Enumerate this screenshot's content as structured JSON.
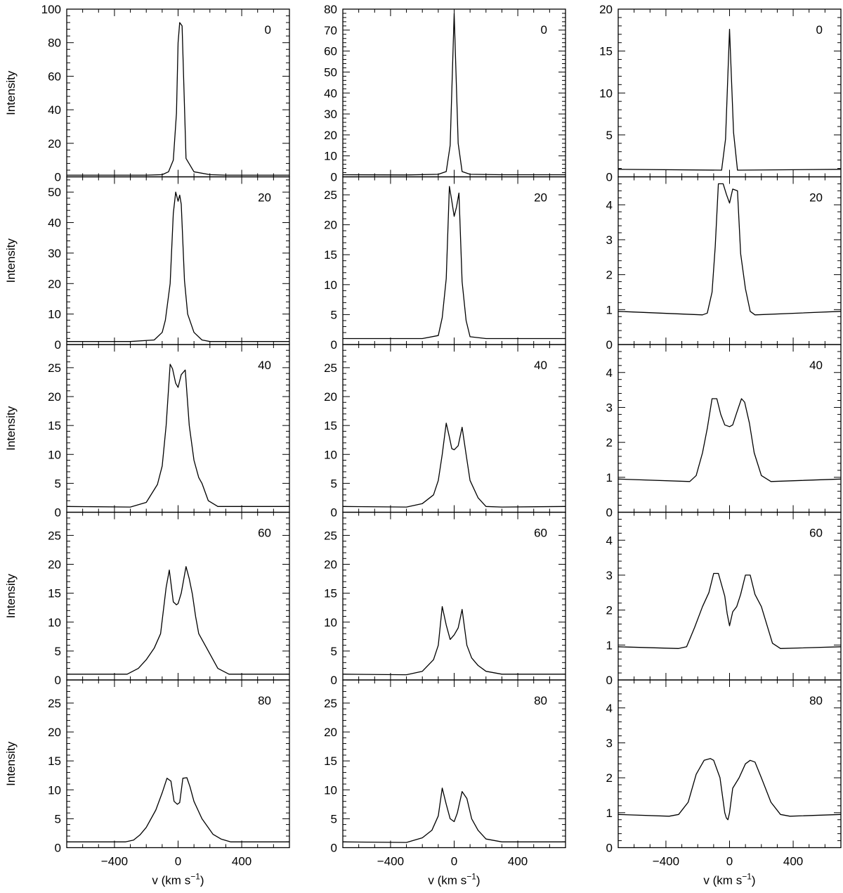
{
  "figure": {
    "ylabel": "Intensity",
    "xlabel_main": "v (km s",
    "xlabel_sup": "−1",
    "xlabel_close": ")",
    "x_ticklabels": [
      "−400",
      "0",
      "400"
    ]
  },
  "chart_data": {
    "type": "line",
    "xlabel": "v (km s−1)",
    "ylabel": "Intensity",
    "xlim": [
      -700,
      700
    ],
    "x_ticks": [
      -400,
      0,
      400
    ],
    "grid": false,
    "columns": [
      {
        "panels": [
          {
            "label": "0",
            "ylim": [
              0,
              100
            ],
            "yticks": [
              0,
              20,
              40,
              60,
              80,
              100
            ],
            "x": [
              -700,
              -300,
              -200,
              -100,
              -60,
              -30,
              -10,
              0,
              10,
              25,
              50,
              100,
              200,
              300,
              700
            ],
            "y": [
              1,
              1,
              1,
              1.3,
              3,
              10,
              38,
              80,
              92,
              90,
              11,
              3,
              1.3,
              1,
              1
            ]
          },
          {
            "label": "20",
            "ylim": [
              0,
              55
            ],
            "yticks": [
              0,
              10,
              20,
              30,
              40,
              50
            ],
            "x": [
              -700,
              -300,
              -150,
              -100,
              -80,
              -50,
              -30,
              -15,
              0,
              10,
              20,
              40,
              60,
              100,
              150,
              200,
              700
            ],
            "y": [
              1,
              1,
              1.5,
              4,
              8,
              20,
              43,
              50,
              47,
              49,
              46,
              21,
              10,
              4,
              1.5,
              1,
              1
            ]
          },
          {
            "label": "40",
            "ylim": [
              0,
              29
            ],
            "yticks": [
              0,
              5,
              10,
              15,
              20,
              25
            ],
            "x": [
              -700,
              -300,
              -200,
              -130,
              -100,
              -75,
              -50,
              -35,
              -15,
              0,
              20,
              45,
              70,
              100,
              130,
              150,
              190,
              250,
              700
            ],
            "y": [
              1,
              0.9,
              1.7,
              4.8,
              8,
              15,
              25.6,
              24.8,
              22.3,
              21.6,
              23.8,
              24.6,
              15,
              9,
              6,
              5,
              2,
              1,
              1
            ]
          },
          {
            "label": "60",
            "ylim": [
              0,
              29
            ],
            "yticks": [
              0,
              5,
              10,
              15,
              20,
              25
            ],
            "x": [
              -700,
              -320,
              -250,
              -200,
              -150,
              -110,
              -75,
              -55,
              -30,
              -10,
              0,
              20,
              50,
              70,
              90,
              110,
              130,
              180,
              250,
              320,
              700
            ],
            "y": [
              1,
              1,
              2,
              3.5,
              5.5,
              8,
              16,
              19,
              13.5,
              13,
              13.2,
              15,
              19.6,
              17.5,
              14.8,
              11,
              8,
              5.5,
              2,
              1,
              1
            ]
          },
          {
            "label": "80",
            "ylim": [
              0,
              29
            ],
            "yticks": [
              0,
              5,
              10,
              15,
              20,
              25
            ],
            "x": [
              -700,
              -330,
              -280,
              -240,
              -200,
              -140,
              -100,
              -70,
              -45,
              -25,
              -5,
              10,
              30,
              55,
              75,
              100,
              150,
              220,
              270,
              330,
              700
            ],
            "y": [
              1,
              1,
              1.3,
              2.2,
              3.5,
              6.5,
              9.5,
              12,
              11.5,
              8,
              7.5,
              7.8,
              12,
              12.1,
              10.5,
              8,
              5,
              2.3,
              1.5,
              1,
              1
            ]
          }
        ]
      },
      {
        "panels": [
          {
            "label": "0",
            "ylim": [
              0,
              80
            ],
            "yticks": [
              0,
              10,
              20,
              30,
              40,
              50,
              60,
              70,
              80
            ],
            "x": [
              -700,
              -300,
              -100,
              -50,
              -25,
              0,
              25,
              50,
              100,
              300,
              700
            ],
            "y": [
              1,
              0.9,
              1.2,
              2.5,
              15,
              78,
              16,
              2.5,
              1.2,
              1,
              1
            ]
          },
          {
            "label": "20",
            "ylim": [
              0,
              28
            ],
            "yticks": [
              0,
              5,
              10,
              15,
              20,
              25
            ],
            "x": [
              -700,
              -200,
              -100,
              -75,
              -50,
              -30,
              -15,
              0,
              15,
              30,
              50,
              75,
              100,
              200,
              700
            ],
            "y": [
              1,
              1,
              1.5,
              4.5,
              11,
              26.4,
              24,
              21.4,
              23,
              25.3,
              10.5,
              4,
              1.3,
              1,
              1
            ]
          },
          {
            "label": "40",
            "ylim": [
              0,
              29
            ],
            "yticks": [
              0,
              5,
              10,
              15,
              20,
              25
            ],
            "x": [
              -700,
              -300,
              -200,
              -130,
              -100,
              -75,
              -50,
              -30,
              -15,
              0,
              25,
              50,
              75,
              100,
              150,
              200,
              300,
              700
            ],
            "y": [
              1,
              0.9,
              1.5,
              3,
              5.5,
              10,
              15.4,
              13,
              11,
              10.8,
              11.5,
              14.7,
              10,
              5.5,
              2.5,
              1,
              0.9,
              1
            ]
          },
          {
            "label": "60",
            "ylim": [
              0,
              29
            ],
            "yticks": [
              0,
              5,
              10,
              15,
              20,
              25
            ],
            "x": [
              -700,
              -300,
              -200,
              -130,
              -100,
              -75,
              -50,
              -25,
              0,
              25,
              50,
              80,
              110,
              150,
              200,
              300,
              700
            ],
            "y": [
              1,
              0.9,
              1.5,
              3.5,
              6,
              12.7,
              9.5,
              7,
              7.8,
              9,
              12.2,
              6,
              3.8,
              2.5,
              1.5,
              1,
              1
            ]
          },
          {
            "label": "80",
            "ylim": [
              0,
              29
            ],
            "yticks": [
              0,
              5,
              10,
              15,
              20,
              25
            ],
            "x": [
              -700,
              -300,
              -200,
              -140,
              -100,
              -75,
              -50,
              -25,
              0,
              20,
              50,
              80,
              110,
              150,
              200,
              300,
              700
            ],
            "y": [
              1,
              0.9,
              1.7,
              3,
              5.5,
              10.3,
              7.5,
              5,
              4.5,
              6,
              9.7,
              8.5,
              5,
              3,
              1.5,
              1,
              1
            ]
          }
        ]
      },
      {
        "panels": [
          {
            "label": "0",
            "ylim": [
              0,
              20
            ],
            "yticks": [
              0,
              5,
              10,
              15,
              20
            ],
            "x": [
              -700,
              -50,
              -25,
              0,
              25,
              50,
              700
            ],
            "y": [
              0.9,
              0.8,
              4.5,
              17.6,
              5.3,
              0.8,
              0.9
            ]
          },
          {
            "label": "20",
            "ylim": [
              0,
              4.8
            ],
            "yticks": [
              0,
              1,
              2,
              3,
              4
            ],
            "x": [
              -700,
              -170,
              -140,
              -110,
              -90,
              -70,
              -40,
              -20,
              0,
              20,
              50,
              70,
              100,
              130,
              160,
              700
            ],
            "y": [
              0.95,
              0.85,
              0.9,
              1.5,
              2.8,
              4.6,
              4.6,
              4.3,
              4.05,
              4.45,
              4.4,
              2.6,
              1.6,
              0.95,
              0.85,
              0.95
            ]
          },
          {
            "label": "40",
            "ylim": [
              0,
              4.8
            ],
            "yticks": [
              0,
              1,
              2,
              3,
              4
            ],
            "x": [
              -700,
              -250,
              -210,
              -170,
              -140,
              -110,
              -80,
              -55,
              -30,
              0,
              20,
              45,
              75,
              95,
              125,
              155,
              200,
              260,
              700
            ],
            "y": [
              0.95,
              0.88,
              1.05,
              1.7,
              2.4,
              3.25,
              3.25,
              2.8,
              2.5,
              2.45,
              2.5,
              2.85,
              3.25,
              3.15,
              2.55,
              1.7,
              1.05,
              0.88,
              0.95
            ]
          },
          {
            "label": "60",
            "ylim": [
              0,
              4.8
            ],
            "yticks": [
              0,
              1,
              2,
              3,
              4
            ],
            "x": [
              -700,
              -320,
              -270,
              -220,
              -170,
              -130,
              -100,
              -70,
              -30,
              -15,
              0,
              20,
              45,
              70,
              100,
              130,
              160,
              200,
              270,
              320,
              700
            ],
            "y": [
              0.95,
              0.9,
              0.95,
              1.5,
              2.1,
              2.5,
              3.05,
              3.05,
              2.4,
              1.9,
              1.55,
              1.95,
              2.1,
              2.45,
              3.0,
              3.0,
              2.45,
              2.1,
              1.05,
              0.9,
              0.95
            ]
          },
          {
            "label": "80",
            "ylim": [
              0,
              4.8
            ],
            "yticks": [
              0,
              1,
              2,
              3,
              4
            ],
            "x": [
              -700,
              -380,
              -320,
              -260,
              -210,
              -160,
              -120,
              -100,
              -60,
              -30,
              -20,
              -10,
              0,
              20,
              60,
              100,
              130,
              160,
              200,
              260,
              320,
              380,
              700
            ],
            "y": [
              0.95,
              0.9,
              0.95,
              1.3,
              2.1,
              2.5,
              2.55,
              2.5,
              2.0,
              1.0,
              0.85,
              0.8,
              1.0,
              1.7,
              2.0,
              2.4,
              2.5,
              2.45,
              2.0,
              1.3,
              0.95,
              0.9,
              0.95
            ]
          }
        ]
      }
    ]
  }
}
